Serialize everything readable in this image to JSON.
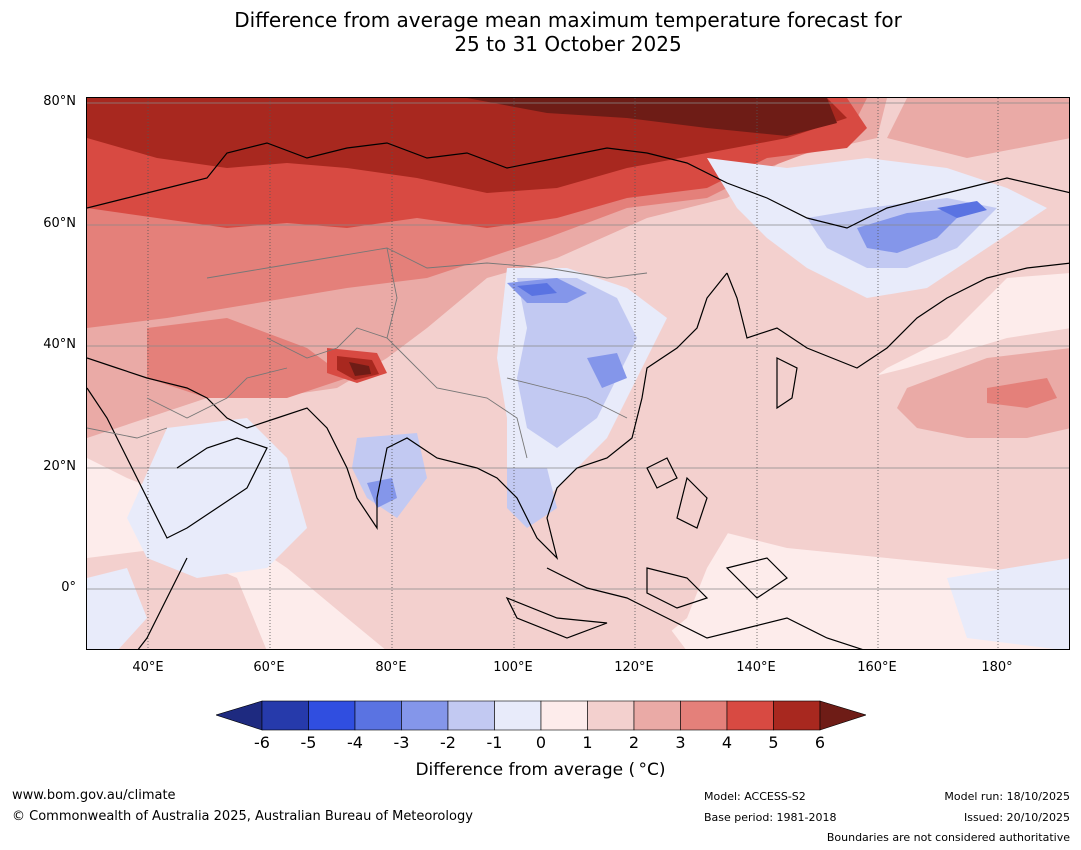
{
  "title": {
    "line1": "Difference from average mean maximum temperature forecast for",
    "line2": "25 to 31 October 2025"
  },
  "map": {
    "lat_labels": [
      "80°N",
      "60°N",
      "40°N",
      "20°N",
      "0°"
    ],
    "lon_labels": [
      "40°E",
      "60°E",
      "80°E",
      "100°E",
      "120°E",
      "140°E",
      "160°E",
      "180°"
    ],
    "extent": {
      "lon_min": 30,
      "lon_max": 191,
      "lat_min": -10,
      "lat_max": 80
    }
  },
  "colorbar": {
    "ticks": [
      "-6",
      "-5",
      "-4",
      "-3",
      "-2",
      "-1",
      "0",
      "1",
      "2",
      "3",
      "4",
      "5",
      "6"
    ],
    "colors": [
      "#263aab",
      "#304ee0",
      "#5a73e2",
      "#8496ea",
      "#c2c9f2",
      "#e8ebfa",
      "#fdeceb",
      "#f3d0ce",
      "#eaaaa6",
      "#e4807a",
      "#d84a42",
      "#a8281f"
    ],
    "under_color": "#1e2a80",
    "over_color": "#6e1c16",
    "label": "Difference from average ( °C)"
  },
  "footer": {
    "url": "www.bom.gov.au/climate",
    "copyright": "© Commonwealth of Australia 2025, Australian Bureau of Meteorology",
    "model": "Model: ACCESS-S2",
    "base_period": "Base period: 1981-2018",
    "model_run": "Model run: 18/10/2025",
    "issued": "Issued: 20/10/2025",
    "disclaimer": "Boundaries are not considered authoritative"
  }
}
